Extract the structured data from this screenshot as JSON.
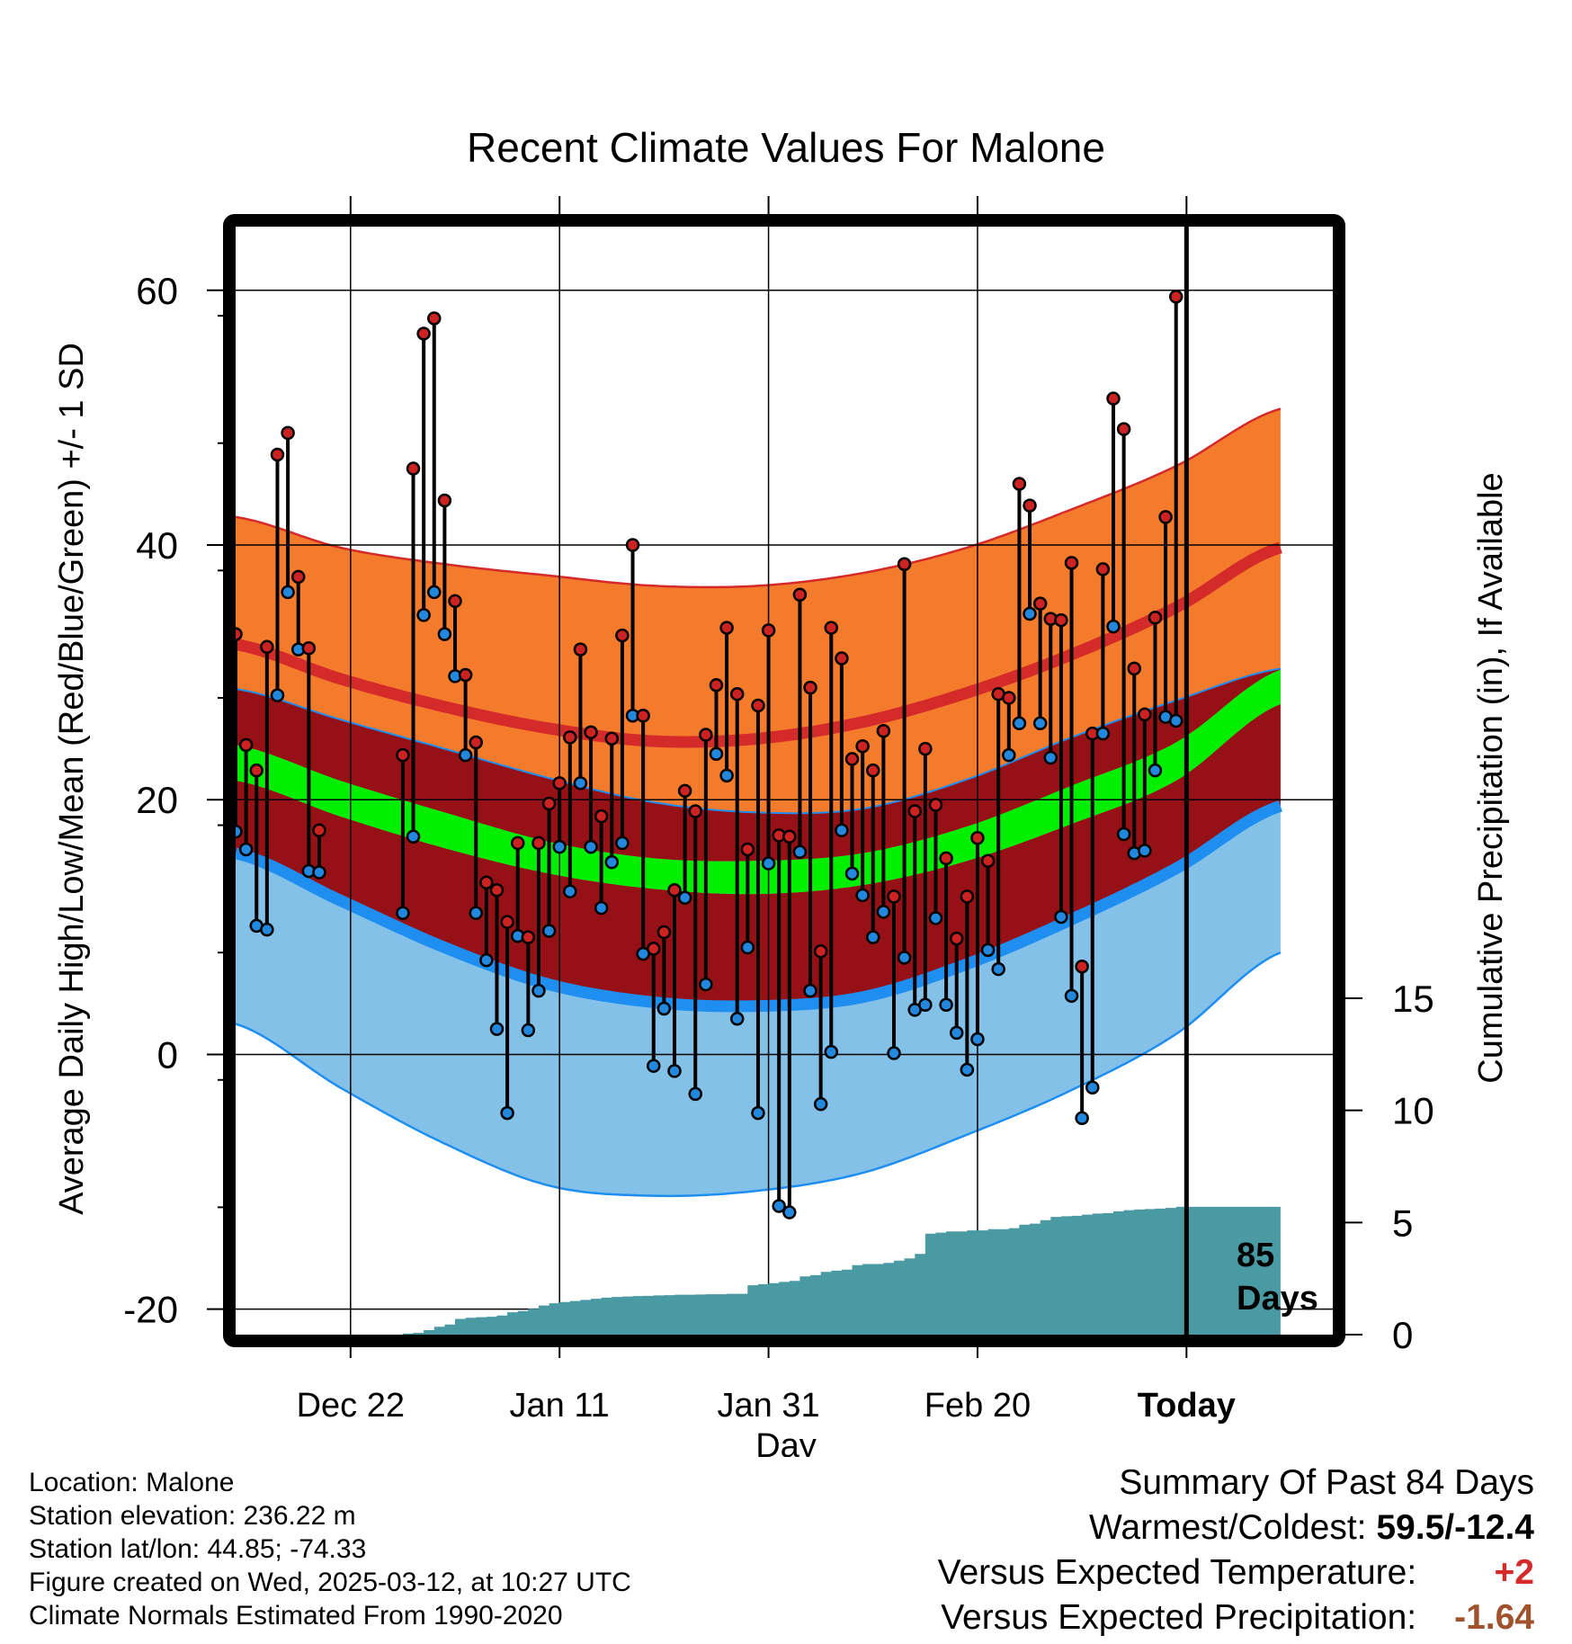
{
  "chart_data": {
    "type": "line",
    "title": "Recent Climate Values For Malone",
    "xlabel": "Day",
    "ylabel": "Average Daily High/Low/Mean (Red/Blue/Green) +/- 1 SD",
    "y2label": "Cumulative Precipitation (in), If Available",
    "ylim": [
      -22,
      65
    ],
    "y2lim": [
      0,
      15
    ],
    "xlim": [
      0,
      105
    ],
    "x_ticks": [
      {
        "x": 11,
        "label": "Dec 22"
      },
      {
        "x": 31,
        "label": "Jan 11"
      },
      {
        "x": 51,
        "label": "Jan 31"
      },
      {
        "x": 71,
        "label": "Feb 20"
      },
      {
        "x": 91,
        "label": "Today"
      }
    ],
    "y_ticks": [
      -20,
      0,
      20,
      40,
      60
    ],
    "y2_ticks": [
      0,
      5,
      10,
      15
    ],
    "today_marker": {
      "x": 91,
      "label_line1": "85",
      "label_line2": "Days"
    },
    "grid": true,
    "normals": {
      "x": [
        0,
        10,
        20,
        30,
        40,
        50,
        60,
        70,
        80,
        90,
        100
      ],
      "high_upper": [
        42.2,
        39.8,
        38.5,
        37.6,
        36.8,
        36.8,
        37.8,
        39.8,
        42.8,
        46.2,
        50.7
      ],
      "high_mean": [
        32.2,
        29.5,
        27.3,
        25.6,
        24.6,
        24.8,
        26.1,
        28.4,
        31.4,
        35.1,
        39.8
      ],
      "high_lower": [
        28.7,
        26.3,
        24.0,
        21.7,
        19.8,
        19.0,
        19.3,
        21.6,
        24.9,
        27.8,
        30.3
      ],
      "mean_upper": [
        24.3,
        21.5,
        19.0,
        16.7,
        15.4,
        15.2,
        15.8,
        17.9,
        21.1,
        24.5,
        30.2
      ],
      "mean_center": [
        22.9,
        20.1,
        17.6,
        15.5,
        14.3,
        14.0,
        14.6,
        16.6,
        19.6,
        23.0,
        28.9
      ],
      "mean_lower": [
        21.5,
        18.7,
        16.2,
        14.2,
        13.0,
        12.6,
        13.3,
        15.2,
        18.1,
        21.5,
        27.5
      ],
      "low_mean": [
        15.8,
        12.1,
        8.4,
        5.5,
        4.1,
        3.8,
        4.5,
        7.1,
        10.6,
        14.6,
        19.5
      ],
      "low_lower": [
        2.4,
        -2.6,
        -7.0,
        -10.3,
        -11.1,
        -10.7,
        -9.3,
        -6.3,
        -2.8,
        1.6,
        8.0
      ]
    },
    "series": [
      {
        "name": "High",
        "x": [
          0,
          1,
          2,
          3,
          4,
          5,
          6,
          7,
          8,
          16,
          17,
          18,
          19,
          20,
          21,
          22,
          23,
          24,
          25,
          26,
          27,
          28,
          29,
          30,
          31,
          32,
          33,
          34,
          35,
          36,
          37,
          38,
          39,
          40,
          41,
          42,
          43,
          44,
          45,
          46,
          47,
          48,
          49,
          50,
          51,
          52,
          53,
          54,
          55,
          56,
          57,
          58,
          59,
          60,
          61,
          62,
          63,
          64,
          65,
          66,
          67,
          68,
          69,
          70,
          71,
          72,
          73,
          74,
          75,
          76,
          77,
          78,
          79,
          80,
          81,
          82,
          83,
          84,
          85,
          86,
          87,
          88,
          89,
          90
        ],
        "values": [
          33.0,
          24.3,
          22.3,
          32.0,
          47.1,
          48.8,
          37.5,
          31.9,
          17.6,
          23.5,
          46.0,
          56.6,
          57.8,
          43.5,
          35.6,
          29.8,
          24.5,
          13.5,
          12.9,
          10.4,
          16.6,
          9.2,
          16.6,
          19.7,
          21.3,
          24.9,
          31.8,
          25.3,
          18.7,
          24.8,
          32.9,
          40.0,
          26.6,
          8.3,
          9.6,
          12.9,
          20.7,
          19.1,
          25.1,
          29.0,
          33.5,
          28.3,
          16.1,
          27.4,
          33.3,
          17.2,
          17.1,
          36.1,
          28.8,
          8.1,
          33.5,
          31.1,
          23.2,
          24.2,
          22.3,
          25.4,
          12.4,
          38.5,
          19.1,
          24.0,
          19.6,
          15.4,
          9.1,
          12.4,
          17.0,
          15.2,
          28.3,
          28.0,
          44.8,
          43.1,
          35.4,
          34.2,
          34.1,
          38.6,
          6.9,
          25.2,
          38.1,
          51.5,
          49.1,
          30.3,
          26.7,
          34.3,
          42.2,
          59.5
        ]
      },
      {
        "name": "Low",
        "x": [
          0,
          1,
          2,
          3,
          4,
          5,
          6,
          7,
          8,
          16,
          17,
          18,
          19,
          20,
          21,
          22,
          23,
          24,
          25,
          26,
          27,
          28,
          29,
          30,
          31,
          32,
          33,
          34,
          35,
          36,
          37,
          38,
          39,
          40,
          41,
          42,
          43,
          44,
          45,
          46,
          47,
          48,
          49,
          50,
          51,
          52,
          53,
          54,
          55,
          56,
          57,
          58,
          59,
          60,
          61,
          62,
          63,
          64,
          65,
          66,
          67,
          68,
          69,
          70,
          71,
          72,
          73,
          74,
          75,
          76,
          77,
          78,
          79,
          80,
          81,
          82,
          83,
          84,
          85,
          86,
          87,
          88,
          89,
          90
        ],
        "values": [
          17.5,
          16.1,
          10.1,
          9.8,
          28.2,
          36.3,
          31.8,
          14.4,
          14.3,
          11.1,
          17.1,
          34.5,
          36.3,
          33.0,
          29.7,
          23.5,
          11.1,
          7.4,
          2.0,
          -4.6,
          9.3,
          1.9,
          5.0,
          9.7,
          16.3,
          12.8,
          21.3,
          16.3,
          11.5,
          15.1,
          16.6,
          26.6,
          7.9,
          -0.9,
          3.6,
          -1.3,
          12.3,
          -3.1,
          5.5,
          23.6,
          21.9,
          2.8,
          8.4,
          -4.6,
          15.0,
          -11.9,
          -12.4,
          15.9,
          5.0,
          -3.9,
          0.2,
          17.6,
          14.2,
          12.5,
          9.2,
          11.2,
          0.1,
          7.6,
          3.5,
          3.9,
          10.7,
          3.9,
          1.7,
          -1.2,
          1.2,
          8.2,
          6.7,
          23.5,
          26.0,
          34.6,
          26.0,
          23.3,
          10.8,
          4.6,
          -5.0,
          -2.6,
          25.2,
          33.6,
          17.3,
          15.8,
          16.0,
          22.3,
          26.5,
          26.2
        ]
      },
      {
        "name": "Cumulative Precipitation",
        "x": [
          0,
          15,
          16,
          17,
          18,
          19,
          20,
          21,
          22,
          23,
          24,
          25,
          26,
          27,
          28,
          29,
          30,
          31,
          32,
          33,
          34,
          35,
          36,
          37,
          38,
          39,
          40,
          41,
          42,
          43,
          44,
          45,
          46,
          47,
          48,
          49,
          50,
          51,
          52,
          53,
          54,
          55,
          56,
          57,
          58,
          59,
          60,
          61,
          62,
          63,
          64,
          65,
          66,
          67,
          68,
          69,
          70,
          71,
          72,
          73,
          74,
          75,
          76,
          77,
          78,
          79,
          80,
          81,
          82,
          83,
          84,
          85,
          86,
          87,
          88,
          89,
          90,
          100
        ],
        "values": [
          0.0,
          0.0,
          0.05,
          0.08,
          0.2,
          0.35,
          0.45,
          0.7,
          0.75,
          0.78,
          0.8,
          0.85,
          1.0,
          1.05,
          1.15,
          1.3,
          1.4,
          1.45,
          1.5,
          1.55,
          1.6,
          1.65,
          1.68,
          1.7,
          1.72,
          1.73,
          1.75,
          1.76,
          1.78,
          1.78,
          1.79,
          1.8,
          1.8,
          1.82,
          1.82,
          2.2,
          2.25,
          2.3,
          2.35,
          2.4,
          2.6,
          2.65,
          2.8,
          2.85,
          2.9,
          3.1,
          3.15,
          3.15,
          3.2,
          3.3,
          3.4,
          3.6,
          4.5,
          4.55,
          4.6,
          4.6,
          4.65,
          4.65,
          4.7,
          4.7,
          4.75,
          4.9,
          4.95,
          5.1,
          5.25,
          5.28,
          5.3,
          5.35,
          5.4,
          5.42,
          5.5,
          5.55,
          5.58,
          5.6,
          5.62,
          5.65,
          5.7,
          5.7
        ]
      }
    ]
  },
  "info": {
    "location": "Location: Malone",
    "elevation": "Station elevation: 236.22 m",
    "latlon": "Station lat/lon: 44.85; -74.33",
    "created": "Figure created on Wed, 2025-03-12, at 10:27 UTC",
    "normals": "Climate Normals Estimated From 1990-2020"
  },
  "summary": {
    "heading": "Summary Of Past 84 Days",
    "warmest_label": "Warmest/Coldest:",
    "warmest_value": "59.5/-12.4",
    "temp_label": "Versus Expected Temperature:",
    "temp_value": "+2",
    "precip_label": "Versus Expected Precipitation:",
    "precip_value": "-1.64"
  },
  "colors": {
    "high_band": "#f47b2c",
    "high_line": "#d42a2a",
    "mid_band": "#961115",
    "mean_band": "#00ee00",
    "low_band": "#84c1e8",
    "low_line": "#1e8ef0",
    "precip": "#4a9aa3",
    "high_dot": "#cc2222",
    "low_dot": "#2288dd"
  }
}
